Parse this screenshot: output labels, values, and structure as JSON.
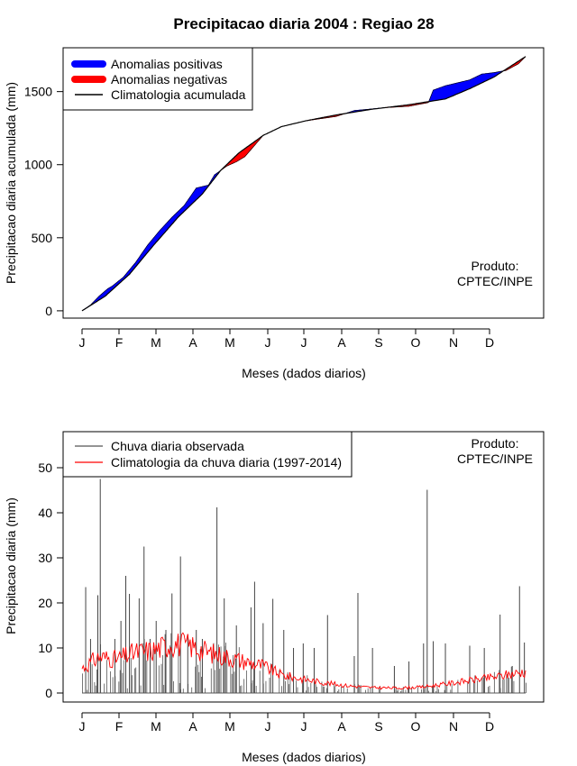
{
  "title": "Precipitacao diaria 2004 : Regiao 28",
  "credit": {
    "line1": "Produto:",
    "line2": "CPTEC/INPE"
  },
  "chart_data": [
    {
      "type": "area",
      "name": "accumulated",
      "ylabel": "Precipitacao diaria acumulada (mm)",
      "xlabel": "Meses (dados diarios)",
      "ylim": [
        -50,
        1800
      ],
      "yticks": [
        0,
        500,
        1000,
        1500
      ],
      "months": [
        "J",
        "F",
        "M",
        "A",
        "M",
        "J",
        "J",
        "A",
        "S",
        "O",
        "N",
        "D"
      ],
      "legend": [
        {
          "label": "Anomalias positivas",
          "color": "#0000ff"
        },
        {
          "label": "Anomalias negativas",
          "color": "#ff0000"
        },
        {
          "label": "Climatologia acumulada",
          "color": "#000000"
        }
      ],
      "climatology_knots": [
        [
          1,
          0
        ],
        [
          20,
          100
        ],
        [
          40,
          250
        ],
        [
          60,
          450
        ],
        [
          80,
          640
        ],
        [
          100,
          800
        ],
        [
          115,
          960
        ],
        [
          130,
          1080
        ],
        [
          150,
          1200
        ],
        [
          165,
          1260
        ],
        [
          185,
          1300
        ],
        [
          210,
          1340
        ],
        [
          240,
          1380
        ],
        [
          270,
          1410
        ],
        [
          300,
          1450
        ],
        [
          320,
          1520
        ],
        [
          340,
          1600
        ],
        [
          366,
          1740
        ]
      ],
      "observed_knots": [
        [
          1,
          0
        ],
        [
          8,
          40
        ],
        [
          15,
          100
        ],
        [
          22,
          150
        ],
        [
          26,
          170
        ],
        [
          35,
          230
        ],
        [
          45,
          330
        ],
        [
          55,
          450
        ],
        [
          65,
          550
        ],
        [
          75,
          640
        ],
        [
          85,
          720
        ],
        [
          95,
          840
        ],
        [
          105,
          860
        ],
        [
          110,
          930
        ],
        [
          120,
          990
        ],
        [
          128,
          1020
        ],
        [
          135,
          1055
        ],
        [
          150,
          1200
        ],
        [
          165,
          1260
        ],
        [
          185,
          1300
        ],
        [
          210,
          1330
        ],
        [
          225,
          1370
        ],
        [
          250,
          1390
        ],
        [
          270,
          1400
        ],
        [
          286,
          1425
        ],
        [
          290,
          1510
        ],
        [
          300,
          1540
        ],
        [
          320,
          1580
        ],
        [
          330,
          1620
        ],
        [
          340,
          1630
        ],
        [
          350,
          1645
        ],
        [
          360,
          1690
        ],
        [
          366,
          1740
        ]
      ]
    },
    {
      "type": "bar",
      "name": "daily",
      "ylabel": "Precipitacao diaria (mm)",
      "xlabel": "Meses (dados diarios)",
      "ylim": [
        -2,
        58
      ],
      "yticks": [
        0,
        10,
        20,
        30,
        40,
        50
      ],
      "months": [
        "J",
        "F",
        "M",
        "A",
        "M",
        "J",
        "J",
        "A",
        "S",
        "O",
        "N",
        "D"
      ],
      "legend": [
        {
          "label": "Chuva diaria observada",
          "color": "#555555"
        },
        {
          "label": "Climatologia da chuva diaria (1997-2014)",
          "color": "#ff0000"
        }
      ],
      "spikes": [
        [
          4,
          23.5
        ],
        [
          8,
          12
        ],
        [
          14,
          21.7
        ],
        [
          16,
          47.5
        ],
        [
          28,
          12
        ],
        [
          33,
          16
        ],
        [
          37,
          26
        ],
        [
          40,
          22
        ],
        [
          48,
          21
        ],
        [
          52,
          32.5
        ],
        [
          57,
          12
        ],
        [
          62,
          16
        ],
        [
          70,
          14
        ],
        [
          75,
          22.1
        ],
        [
          82,
          30.3
        ],
        [
          88,
          13
        ],
        [
          95,
          14
        ],
        [
          100,
          12
        ],
        [
          112,
          41.2
        ],
        [
          118,
          21
        ],
        [
          128,
          15
        ],
        [
          140,
          19
        ],
        [
          143,
          24.7
        ],
        [
          150,
          15.5
        ],
        [
          158,
          20.9
        ],
        [
          167,
          14
        ],
        [
          175,
          10
        ],
        [
          183,
          11
        ],
        [
          192,
          10
        ],
        [
          203,
          17.3
        ],
        [
          225,
          8.2
        ],
        [
          228,
          22.2
        ],
        [
          240,
          10
        ],
        [
          258,
          6
        ],
        [
          270,
          7
        ],
        [
          282,
          11
        ],
        [
          285,
          45.1
        ],
        [
          290,
          11.5
        ],
        [
          300,
          11
        ],
        [
          320,
          10.5
        ],
        [
          332,
          10
        ],
        [
          345,
          17.4
        ],
        [
          355,
          6
        ],
        [
          361,
          23.7
        ],
        [
          365,
          11.2
        ]
      ],
      "climatology_knots": [
        [
          1,
          5.5
        ],
        [
          15,
          8
        ],
        [
          30,
          7.5
        ],
        [
          45,
          9
        ],
        [
          60,
          9.5
        ],
        [
          75,
          11
        ],
        [
          90,
          10.5
        ],
        [
          105,
          9
        ],
        [
          120,
          8
        ],
        [
          135,
          7
        ],
        [
          150,
          6
        ],
        [
          165,
          4
        ],
        [
          180,
          3.2
        ],
        [
          200,
          2.3
        ],
        [
          220,
          1.6
        ],
        [
          240,
          1.2
        ],
        [
          260,
          1.1
        ],
        [
          280,
          1.3
        ],
        [
          300,
          2
        ],
        [
          320,
          2.8
        ],
        [
          340,
          3.5
        ],
        [
          366,
          4.8
        ]
      ]
    }
  ]
}
